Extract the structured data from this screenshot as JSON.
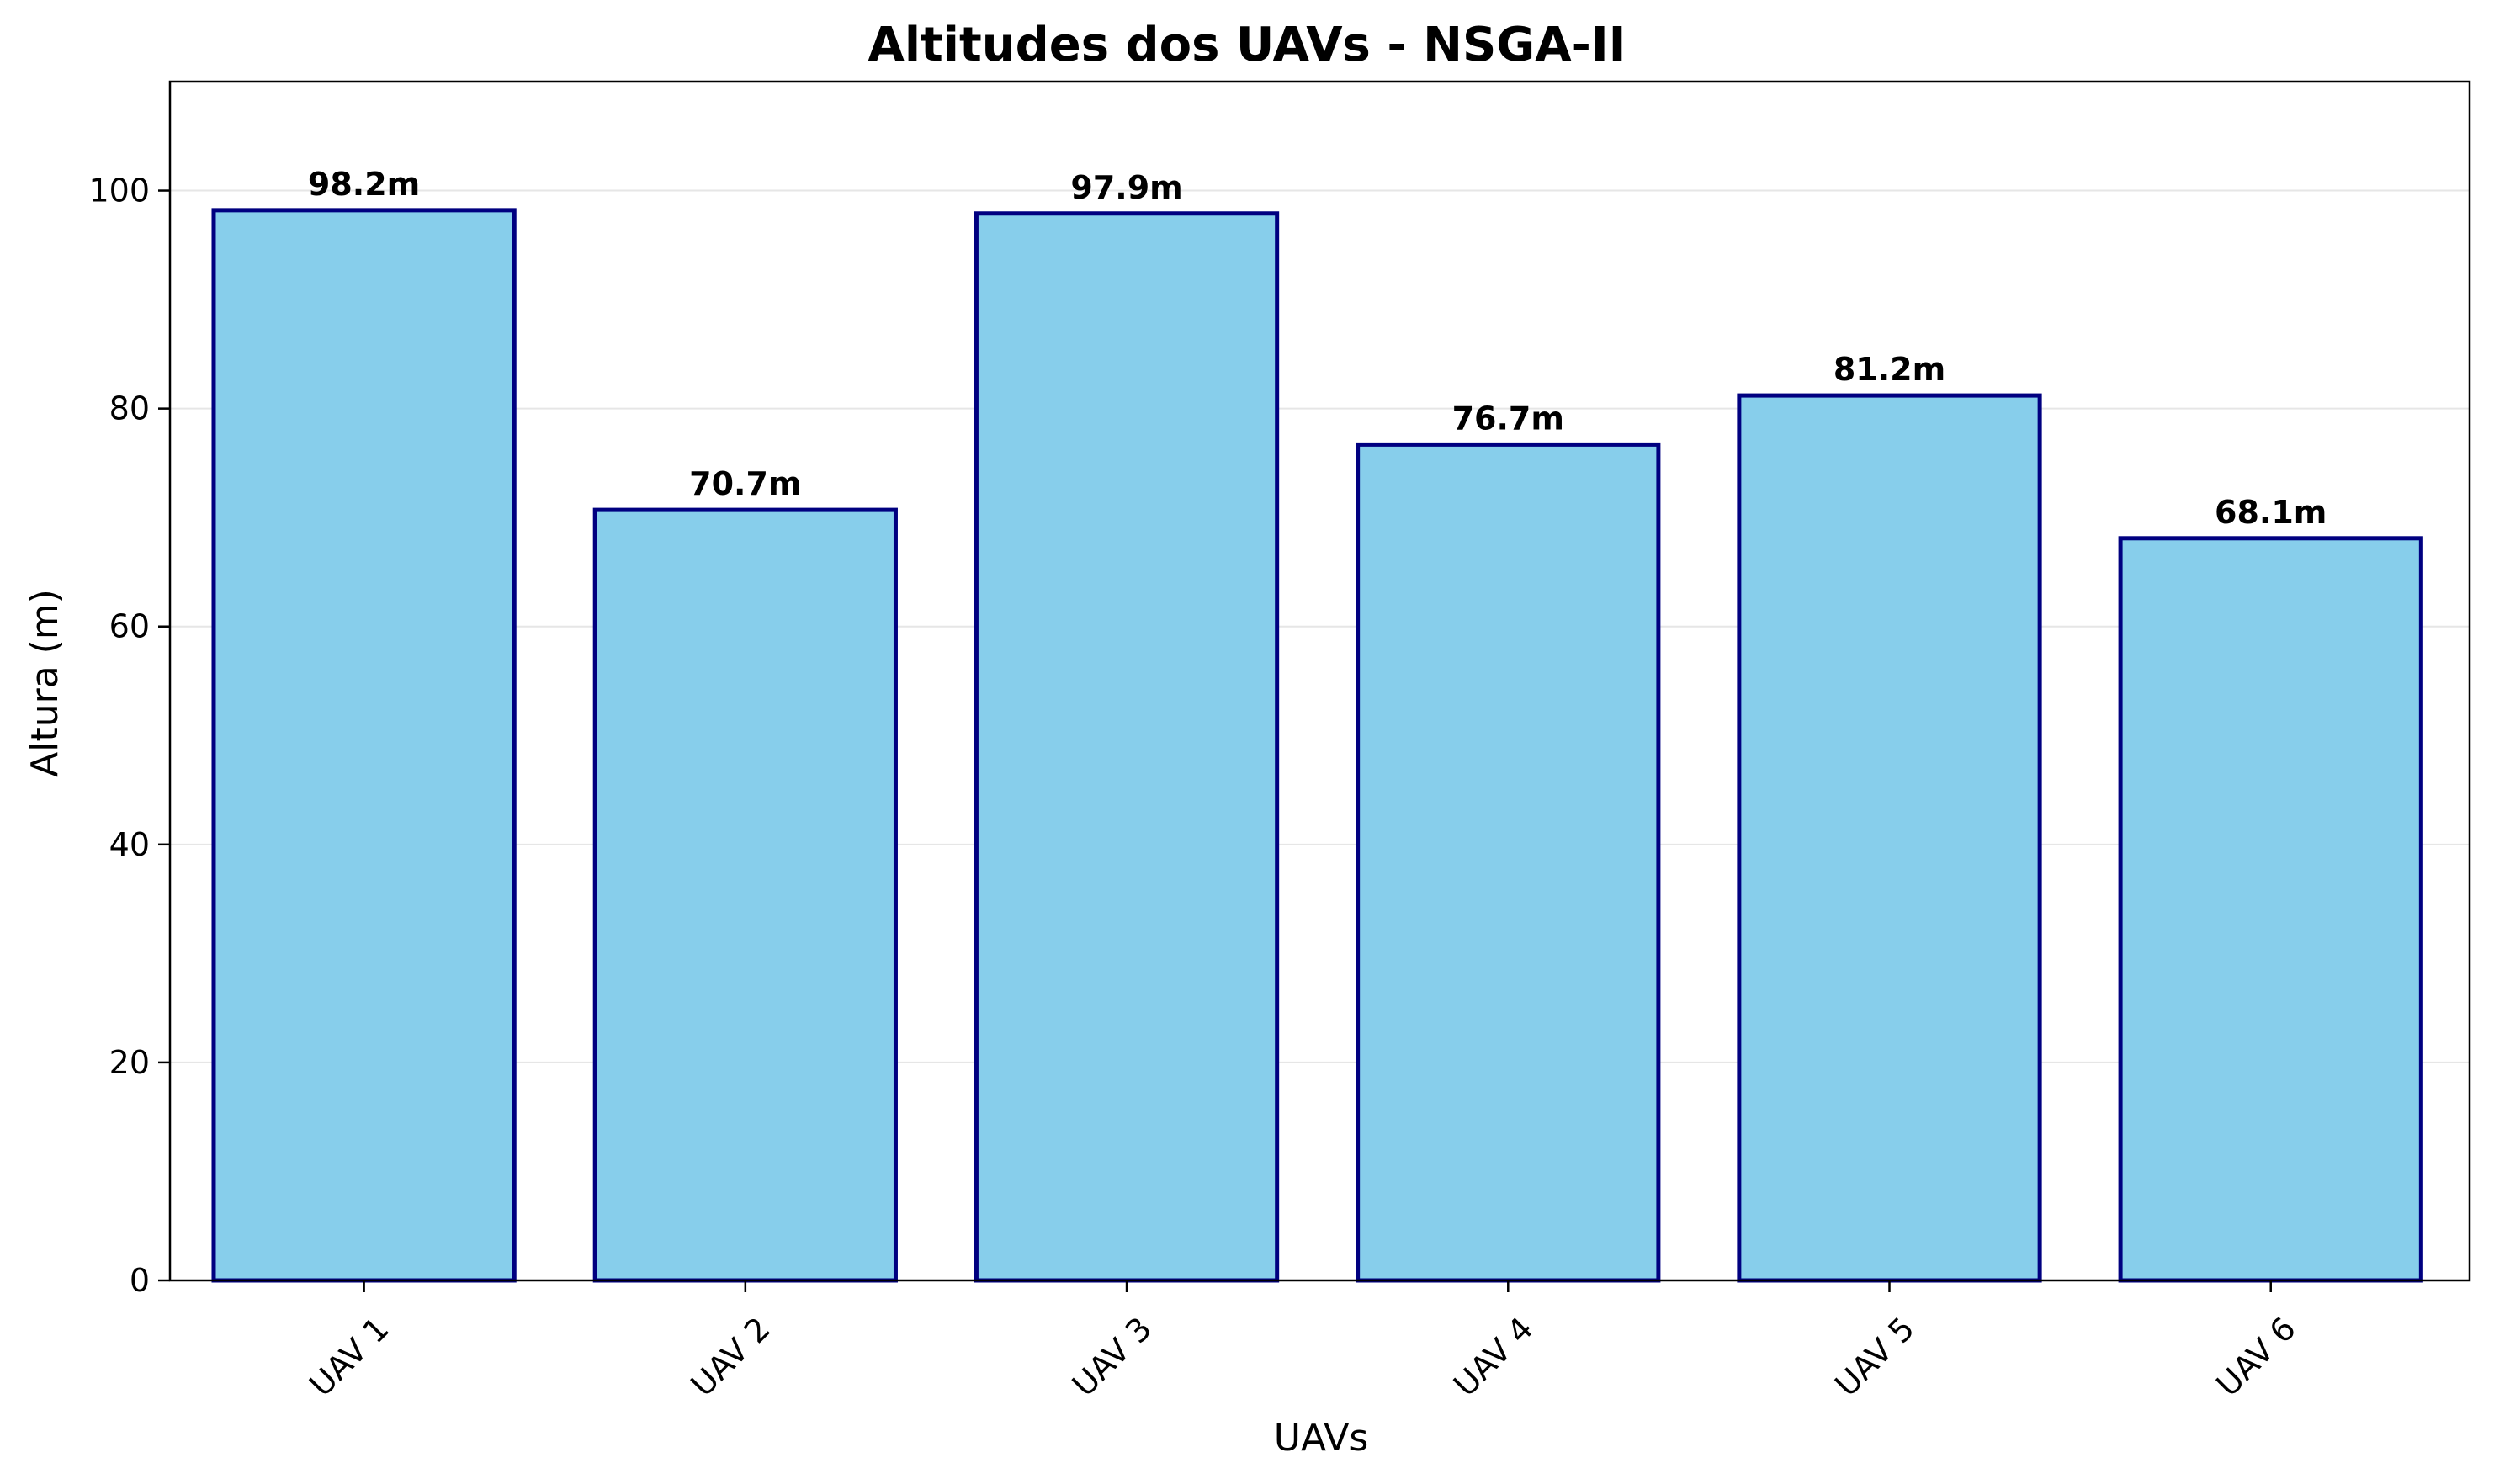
{
  "chart_data": {
    "type": "bar",
    "title": "Altitudes dos UAVs - NSGA-II",
    "xlabel": "UAVs",
    "ylabel": "Altura (m)",
    "categories": [
      "UAV 1",
      "UAV 2",
      "UAV 3",
      "UAV 4",
      "UAV 5",
      "UAV 6"
    ],
    "values": [
      98.2,
      70.7,
      97.9,
      76.7,
      81.2,
      68.1
    ],
    "data_labels": [
      "98.2m",
      "70.7m",
      "97.9m",
      "76.7m",
      "81.2m",
      "68.1m"
    ],
    "ylim": [
      0,
      110
    ],
    "yticks": [
      0,
      20,
      40,
      60,
      80,
      100
    ],
    "ytick_labels": [
      "0",
      "20",
      "40",
      "60",
      "80",
      "100"
    ],
    "grid": "horizontal",
    "xtick_rotation_deg": 45,
    "colors": {
      "bar_fill": "#87CEEB",
      "bar_edge": "#000080",
      "grid": "#e6e6e6",
      "axis": "#000000"
    }
  }
}
